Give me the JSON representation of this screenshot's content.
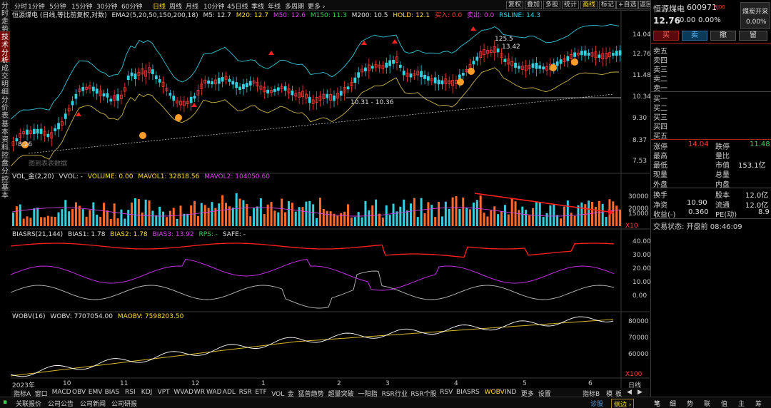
{
  "left_tabs": [
    "分时走势",
    "技术分析",
    "成交明细",
    "分价表",
    "基本资料",
    "控盘分析",
    "控基本"
  ],
  "topbar": {
    "periods": [
      "分时",
      "1分钟",
      "5分钟",
      "15分钟",
      "30分钟",
      "60分钟",
      "日线",
      "周线",
      "月线",
      "10分钟",
      "45日线",
      "季线",
      "年线",
      "多周期",
      "更多 ›"
    ],
    "active_period": "日线",
    "right_buttons": [
      "复权",
      "叠加",
      "多股",
      "统计",
      "画线",
      "标记",
      "+自选",
      "返回"
    ],
    "active_right": "画线"
  },
  "main_legend": {
    "title": "恒源煤电 (日线,等比前复权,对数)",
    "ema": "EMA2(5,20,50,150,200,18)",
    "m5": "M5: 12.7",
    "m20": "M20: 12.7",
    "m50": "M50: 12.6",
    "m150": "M150: 11.3",
    "m200": "M200: 10.5",
    "hold": "HOLD: 12.1",
    "buy": "买入: 0.0",
    "sell": "卖出: 0.0",
    "rsline": "RSLINE: 14.3"
  },
  "price_axis": [
    "14.04",
    "12.76",
    "11.48",
    "10.34",
    "9.30",
    "8.37",
    "7.53"
  ],
  "annotations": {
    "high": "125.5",
    "high2": "13.42",
    "mid": "10.31 - 10.36",
    "low": "8.26",
    "watermark": "图到表表数据"
  },
  "vol_legend": {
    "name": "VOL_金(2,20)",
    "vvol": "VVOL: -",
    "volume": "VOLUME: 0.00",
    "mavol1": "MAVOL1: 32818.56",
    "mavol2": "MAVOL2: 104050.60"
  },
  "vol_axis": [
    "30000",
    "20000",
    "15000",
    "X10"
  ],
  "bias_legend": {
    "name": "BIASRS(21,144)",
    "b1": "BIAS1: 1.78",
    "b2": "BIAS2: 1.78",
    "b3": "BIAS3: 13.92",
    "rps": "RPS: -",
    "safe": "SAFE: -"
  },
  "bias_axis": [
    "40.00",
    "30.00",
    "20.00",
    "10.00",
    "0.00"
  ],
  "wobv_legend": {
    "name": "WOBV(16)",
    "wobv": "WOBV: 7707054.00",
    "maobv": "MAOBV: 7598203.50"
  },
  "wobv_axis": [
    "80000",
    "70000",
    "60000",
    "X100"
  ],
  "x_labels": [
    "2023年",
    "10",
    "11",
    "12",
    "1",
    "2",
    "3",
    "4",
    "5",
    "6"
  ],
  "corner_label": "日线",
  "bottom_tabs": [
    "指标A",
    "窗口",
    "MACD",
    "OBV",
    "EMV",
    "BIAS",
    "RSI",
    "KDJ",
    "VPT",
    "WVAD",
    "WR",
    "WAD",
    "ADL",
    "RSR",
    "ETF",
    "VOL_金",
    "猛兽趋势",
    "超量突破",
    "一阳指",
    "RSR行业",
    "RSR个股",
    "RSV",
    "BIASRS",
    "WOBV",
    "IND",
    "更多",
    "设置"
  ],
  "active_bottom": "WOBV",
  "bottom_right": [
    "指标B",
    "模",
    "板"
  ],
  "stock": {
    "name": "恒源煤电",
    "code": "600971",
    "tag": "RJ00",
    "badge": "煤炭开采",
    "badge_pct": "0.00%",
    "price": "12.76",
    "change": "0.00",
    "pct": "0.00%"
  },
  "trade_buttons": [
    "买",
    "卖",
    "撤",
    "留"
  ],
  "asks": [
    "卖五",
    "卖四",
    "卖三",
    "卖二",
    "卖一"
  ],
  "bids": [
    "买一",
    "买二",
    "买三",
    "买四",
    "买五"
  ],
  "quote": {
    "zt_label": "涨停",
    "zt": "14.04",
    "dt_label": "跌停",
    "dt": "11.48",
    "high_label": "最高",
    "lb_label": "量比",
    "low_label": "最低",
    "mv_label": "市值",
    "mv": "153.1亿",
    "xl_label": "现量",
    "zl_label": "总量",
    "wp_label": "外盘",
    "np_label": "内盘",
    "hs_label": "换手",
    "gb_label": "股本",
    "gb": "12.0亿",
    "jz_label": "净资",
    "jz": "10.90",
    "lt_label": "流通",
    "lt": "12.0亿",
    "sy_label": "收益(-)",
    "sy": "0.360",
    "pe_label": "PE(动)",
    "pe": "8.9"
  },
  "status": "交易状态: 开盘前 08:46:09",
  "footer": {
    "items": [
      "关联报价",
      "公司公告",
      "公司新闻",
      "公司研报"
    ],
    "right": [
      "诊股",
      "侧边 ›"
    ],
    "icons": [
      "笔",
      "细",
      "势",
      "联",
      "值",
      "主",
      "筹"
    ]
  },
  "colors": {
    "up": "#ff3b3b",
    "down": "#35d0e0",
    "ma": "#b8a43a",
    "upper": "#35c6d6",
    "lower": "#c9b44b"
  }
}
